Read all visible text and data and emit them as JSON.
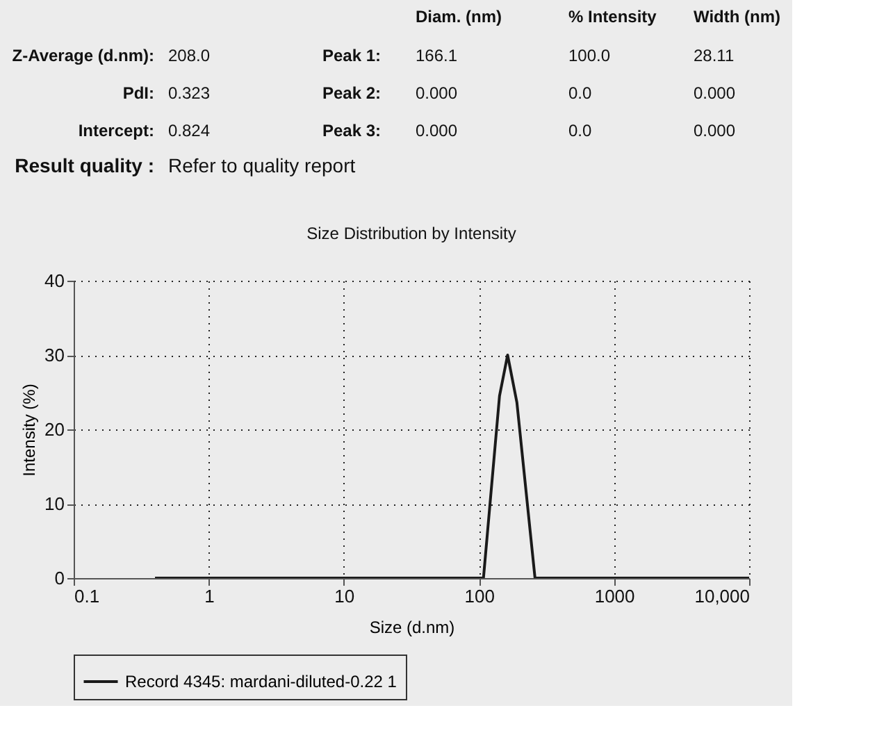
{
  "chart_data": {
    "type": "line",
    "title": "Size Distribution by Intensity",
    "xlabel": "Size (d.nm)",
    "ylabel": "Intensity (%)",
    "annotations": [
      "Diam. (nm)",
      "% Intensity",
      "Width (nm)",
      "Z-Average (d.nm):",
      "208.0",
      "Peak 1:",
      "166.1",
      "100.0",
      "28.11",
      "PdI:",
      "0.323",
      "Peak 2:",
      "0.000",
      "0.0",
      "0.000",
      "Intercept:",
      "0.824",
      "Peak 3:",
      "0.000",
      "0.0",
      "0.000",
      "Result quality :",
      "Refer to quality report"
    ],
    "x": [
      0.4,
      108,
      142,
      163,
      191,
      260,
      10000
    ],
    "series": [
      {
        "name": "Record 4345: mardani-diluted-0.22 1",
        "color": "#1a1a1a",
        "values": [
          0,
          0,
          24.5,
          30,
          23.6,
          0,
          0
        ]
      }
    ],
    "log": "x",
    "xlim": [
      0.1,
      10000
    ],
    "xticks": [
      0.1,
      1,
      10,
      100,
      1000,
      {
        "value": 10000,
        "label": "10,000"
      }
    ],
    "ylim": [
      0,
      40
    ],
    "yticks": [
      0,
      10,
      20,
      30,
      40
    ],
    "grid": true,
    "legend": "bottom",
    "marker": "none",
    "line_style": "solid"
  }
}
